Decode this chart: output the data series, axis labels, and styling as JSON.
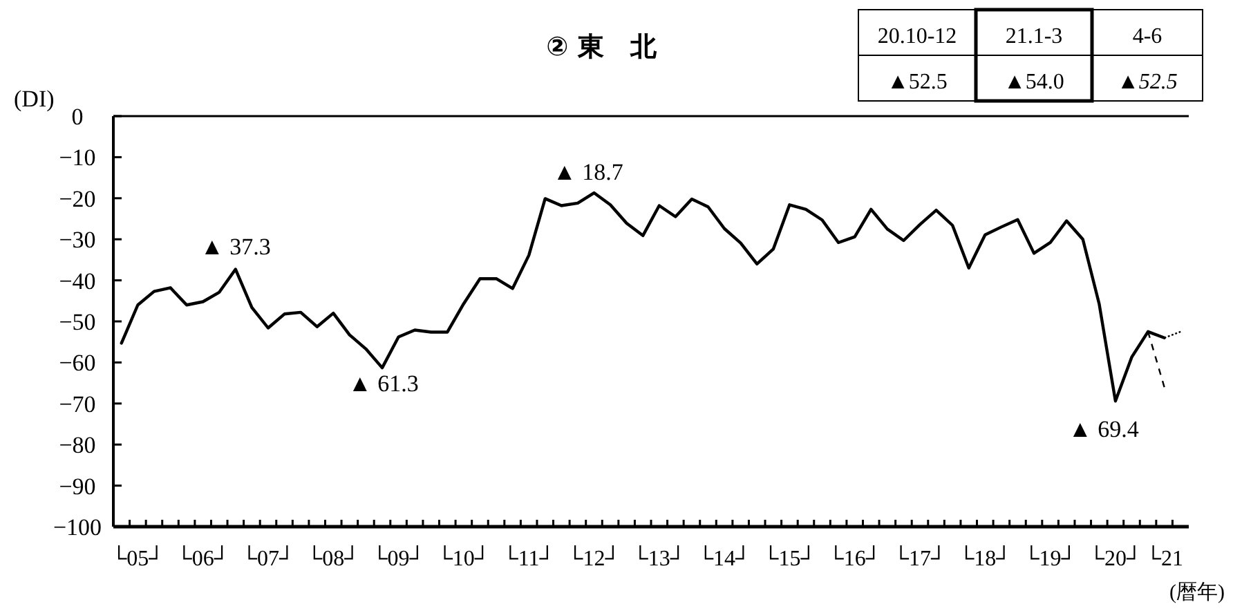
{
  "chart_data": {
    "type": "line",
    "title": "② 東　北",
    "ylabel": "(DI)",
    "xlabel": "(暦年)",
    "categories": [
      null,
      "└05┘",
      null,
      null,
      null,
      "└06┘",
      null,
      null,
      null,
      "└07┘",
      null,
      null,
      null,
      "└08┘",
      null,
      null,
      null,
      "└09┘",
      null,
      null,
      null,
      "└10┘",
      null,
      null,
      null,
      "└11┘",
      null,
      null,
      null,
      "└12┘",
      null,
      null,
      null,
      "└13┘",
      null,
      null,
      null,
      "└14┘",
      null,
      null,
      null,
      "└15┘",
      null,
      null,
      null,
      "└16┘",
      null,
      null,
      null,
      "└17┘",
      null,
      null,
      null,
      "└18┘",
      null,
      null,
      null,
      "└19┘",
      null,
      null,
      null,
      "└20┘",
      null,
      null,
      "└21",
      null
    ],
    "series": [
      {
        "color": "#000000",
        "line_style": "solid",
        "values": [
          -55.3,
          -46,
          -42.7,
          -41.8,
          -46,
          -45.2,
          -42.9,
          -37.3,
          -46.6,
          -51.6,
          -48.2,
          -47.8,
          -51.3,
          -48,
          -53.3,
          -56.7,
          -61.3,
          -53.8,
          -52.1,
          -52.6,
          -52.6,
          -45.7,
          -39.6,
          -39.6,
          -42,
          -33.9,
          -20.1,
          -21.8,
          -21.2,
          -18.7,
          -21.6,
          -26.1,
          -29.1,
          -21.8,
          -24.5,
          -20.2,
          -22.1,
          -27.4,
          -30.9,
          -36,
          -32.4,
          -21.6,
          -22.7,
          -25.3,
          -30.8,
          -29.4,
          -22.7,
          -27.5,
          -30.3,
          -26.4,
          -22.9,
          -26.6,
          -37,
          -28.9,
          -27,
          -25.2,
          -33.4,
          -30.8,
          -25.5,
          -30,
          -45.7,
          -69.4,
          -58.7,
          -52.5,
          -54,
          null
        ]
      },
      {
        "color": "#000000",
        "line_style": "dashed",
        "values": [
          null,
          null,
          null,
          null,
          null,
          null,
          null,
          null,
          null,
          null,
          null,
          null,
          null,
          null,
          null,
          null,
          null,
          null,
          null,
          null,
          null,
          null,
          null,
          null,
          null,
          null,
          null,
          null,
          null,
          null,
          null,
          null,
          null,
          null,
          null,
          null,
          null,
          null,
          null,
          null,
          null,
          null,
          null,
          null,
          null,
          null,
          null,
          null,
          null,
          null,
          null,
          null,
          null,
          null,
          null,
          null,
          null,
          null,
          null,
          null,
          null,
          null,
          null,
          -52.5,
          -66,
          null
        ]
      },
      {
        "color": "#000000",
        "line_style": "dashed",
        "values": [
          null,
          null,
          null,
          null,
          null,
          null,
          null,
          null,
          null,
          null,
          null,
          null,
          null,
          null,
          null,
          null,
          null,
          null,
          null,
          null,
          null,
          null,
          null,
          null,
          null,
          null,
          null,
          null,
          null,
          null,
          null,
          null,
          null,
          null,
          null,
          null,
          null,
          null,
          null,
          null,
          null,
          null,
          null,
          null,
          null,
          null,
          null,
          null,
          null,
          null,
          null,
          null,
          null,
          null,
          null,
          null,
          null,
          null,
          null,
          null,
          null,
          null,
          null,
          null,
          -54,
          -52.5
        ]
      }
    ],
    "ylim": [
      -100,
      0
    ],
    "yticks": [
      0,
      -10,
      -20,
      -30,
      -40,
      -50,
      -60,
      -70,
      -80,
      -90,
      -100
    ],
    "annotations": [
      "▲ 37.3",
      "▲ 61.3",
      "▲ 18.7",
      "▲ 69.4",
      "20.10-12",
      "21.1-3",
      "4-6",
      "▲52.5",
      "▲54.0",
      "▲52.5"
    ]
  }
}
